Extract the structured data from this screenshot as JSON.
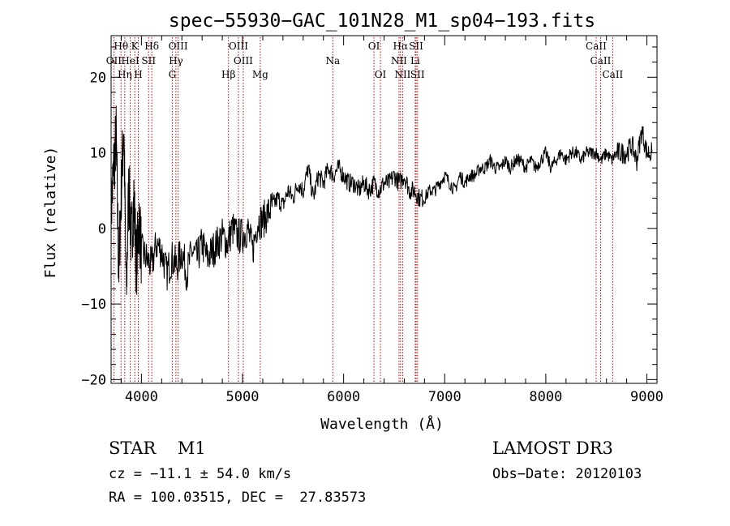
{
  "chart_data": {
    "type": "line",
    "title": "spec−55930−GAC_101N28_M1_sp04−193.fits",
    "xlabel": "Wavelength (Å)",
    "ylabel": "Flux (relative)",
    "xlim": [
      3700,
      9100
    ],
    "ylim": [
      -20.5,
      25.5
    ],
    "x_ticks": [
      4000,
      5000,
      6000,
      7000,
      8000,
      9000
    ],
    "x_tick_labels": [
      "4000",
      "5000",
      "6000",
      "7000",
      "8000",
      "9000"
    ],
    "y_ticks": [
      -20,
      -10,
      0,
      10,
      20
    ],
    "y_tick_labels": [
      "−20",
      "−10",
      "0",
      "10",
      "20"
    ],
    "grid": false,
    "series": [
      {
        "color": "#000000",
        "x": [
          3700,
          3725,
          3750,
          3775,
          3800,
          3825,
          3850,
          3875,
          3900,
          3925,
          3950,
          3975,
          4000,
          4050,
          4100,
          4150,
          4200,
          4250,
          4300,
          4350,
          4400,
          4450,
          4500,
          4550,
          4600,
          4650,
          4700,
          4750,
          4800,
          4850,
          4900,
          4950,
          5000,
          5050,
          5100,
          5150,
          5200,
          5250,
          5300,
          5350,
          5400,
          5450,
          5500,
          5550,
          5600,
          5650,
          5700,
          5750,
          5800,
          5850,
          5900,
          5950,
          6000,
          6050,
          6100,
          6150,
          6200,
          6250,
          6300,
          6350,
          6400,
          6450,
          6500,
          6550,
          6600,
          6650,
          6700,
          6750,
          6800,
          6850,
          6900,
          6950,
          7000,
          7050,
          7100,
          7150,
          7200,
          7250,
          7300,
          7350,
          7400,
          7450,
          7500,
          7550,
          7600,
          7650,
          7700,
          7750,
          7800,
          7850,
          7900,
          7950,
          8000,
          8050,
          8100,
          8150,
          8200,
          8250,
          8300,
          8350,
          8400,
          8450,
          8500,
          8550,
          8600,
          8650,
          8700,
          8750,
          8800,
          8850,
          8900,
          8950,
          9000,
          9050
        ],
        "y": [
          2,
          8,
          12,
          -6,
          5,
          14,
          -9,
          6,
          -2,
          4,
          -5,
          1,
          -3,
          -4,
          -5,
          -2,
          -3,
          -6,
          -4,
          -5,
          -3,
          -6,
          -3,
          -4,
          -2,
          -4,
          -3,
          -2,
          -1,
          -2,
          0,
          -1,
          -1,
          0,
          -3,
          1,
          1,
          2,
          3,
          4,
          3,
          5,
          4,
          6,
          5,
          8,
          4,
          7,
          6,
          8,
          7,
          8,
          7,
          6,
          6,
          5,
          6,
          5,
          6,
          5,
          6,
          6,
          7,
          6,
          7,
          5,
          5,
          4,
          4,
          5,
          5,
          6,
          7,
          6,
          5,
          7,
          6,
          7,
          7,
          8,
          8,
          9,
          8,
          8,
          9,
          8,
          9,
          9,
          8,
          9,
          8,
          9,
          10,
          8,
          9,
          10,
          9,
          10,
          10,
          9,
          10,
          10,
          10,
          9,
          10,
          9,
          10,
          10,
          10,
          11,
          9,
          13,
          10,
          10
        ]
      }
    ],
    "line_labels": [
      {
        "text": "Hθ",
        "x": 3798,
        "row": 1
      },
      {
        "text": "K",
        "x": 3934,
        "row": 1
      },
      {
        "text": "Hδ",
        "x": 4102,
        "row": 1
      },
      {
        "text": "OIII",
        "x": 4363,
        "row": 1
      },
      {
        "text": "OIII",
        "x": 4959,
        "row": 1
      },
      {
        "text": "OI",
        "x": 6300,
        "row": 1
      },
      {
        "text": "Hα",
        "x": 6563,
        "row": 1
      },
      {
        "text": "SII",
        "x": 6717,
        "row": 1
      },
      {
        "text": "CaII",
        "x": 8498,
        "row": 1
      },
      {
        "text": "OII",
        "x": 3727,
        "row": 2
      },
      {
        "text": "HeI",
        "x": 3889,
        "row": 2
      },
      {
        "text": "SII",
        "x": 4071,
        "row": 2
      },
      {
        "text": "Hγ",
        "x": 4341,
        "row": 2
      },
      {
        "text": "OIII",
        "x": 5007,
        "row": 2
      },
      {
        "text": "Na",
        "x": 5893,
        "row": 2
      },
      {
        "text": "NII",
        "x": 6548,
        "row": 2
      },
      {
        "text": "Li",
        "x": 6708,
        "row": 2
      },
      {
        "text": "CaII",
        "x": 8542,
        "row": 2
      },
      {
        "text": "Hη",
        "x": 3835,
        "row": 3
      },
      {
        "text": "H",
        "x": 3969,
        "row": 3
      },
      {
        "text": "G",
        "x": 4305,
        "row": 3
      },
      {
        "text": "Hβ",
        "x": 4861,
        "row": 3
      },
      {
        "text": "Mg",
        "x": 5175,
        "row": 3
      },
      {
        "text": "OI",
        "x": 6364,
        "row": 3
      },
      {
        "text": "NII",
        "x": 6584,
        "row": 3
      },
      {
        "text": "SII",
        "x": 6731,
        "row": 3
      },
      {
        "text": "CaII",
        "x": 8662,
        "row": 3
      }
    ],
    "line_color": "#cc0000"
  },
  "footer": {
    "class_text": "STAR    M1",
    "cz_text": "cz = −11.1 ± 54.0 km/s",
    "radec_text": "RA = 100.03515, DEC =  27.83573",
    "survey_text": "LAMOST DR3",
    "obs_date_text": "Obs−Date: 20120103"
  }
}
